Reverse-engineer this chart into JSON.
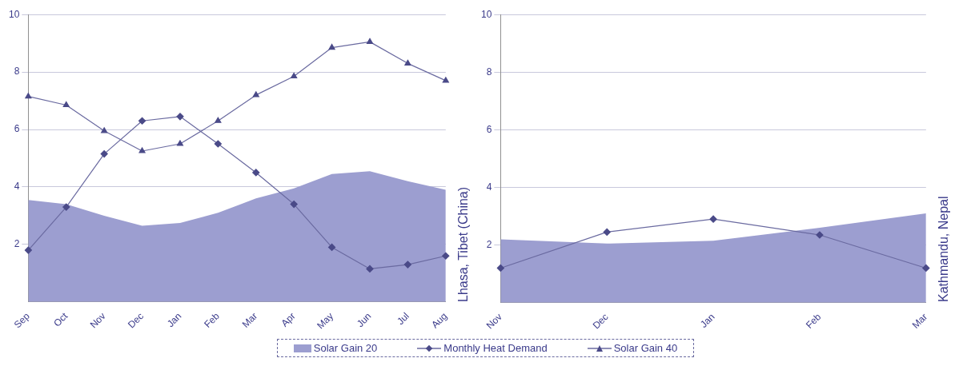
{
  "chart_data": [
    {
      "type": "line",
      "ylabel": "Lhasa, Tibet (China)",
      "categories": [
        "Sep",
        "Oct",
        "Nov",
        "Dec",
        "Jan",
        "Feb",
        "Mar",
        "Apr",
        "May",
        "Jun",
        "Jul",
        "Aug"
      ],
      "ylim": [
        0,
        10
      ],
      "yticks": [
        2,
        4,
        6,
        8,
        10
      ],
      "grid": "y",
      "legend": "bottom",
      "series": [
        {
          "name": "Solar Gain  20",
          "type": "area",
          "color": "#9c9ed0",
          "marker": "none",
          "values": [
            3.55,
            3.4,
            3.0,
            2.65,
            2.75,
            3.1,
            3.6,
            3.95,
            4.45,
            4.55,
            4.2,
            3.9
          ]
        },
        {
          "name": "Monthly Heat Demand",
          "type": "line",
          "color": "#6a6aa0",
          "marker": "diamond",
          "values": [
            1.8,
            3.3,
            5.15,
            6.3,
            6.45,
            5.5,
            4.5,
            3.4,
            1.9,
            1.15,
            1.3,
            1.6
          ]
        },
        {
          "name": "Solar Gain  40",
          "type": "line",
          "color": "#6a6aa0",
          "marker": "triangle",
          "values": [
            7.15,
            6.85,
            5.95,
            5.25,
            5.5,
            6.3,
            7.2,
            7.85,
            8.85,
            9.05,
            8.3,
            7.7
          ]
        }
      ]
    },
    {
      "type": "line",
      "ylabel": "Kathmandu, Nepal",
      "categories": [
        "Nov",
        "Dec",
        "Jan",
        "Feb",
        "Mar"
      ],
      "ylim": [
        0,
        10
      ],
      "yticks": [
        2,
        4,
        6,
        8,
        10
      ],
      "grid": "y",
      "series": [
        {
          "type": "area",
          "color": "#9c9ed0",
          "marker": "none",
          "values": [
            2.2,
            2.05,
            2.15,
            2.6,
            3.1
          ]
        },
        {
          "type": "line",
          "color": "#6a6aa0",
          "marker": "diamond",
          "values": [
            1.2,
            2.45,
            2.9,
            2.35,
            1.2
          ]
        }
      ]
    }
  ]
}
